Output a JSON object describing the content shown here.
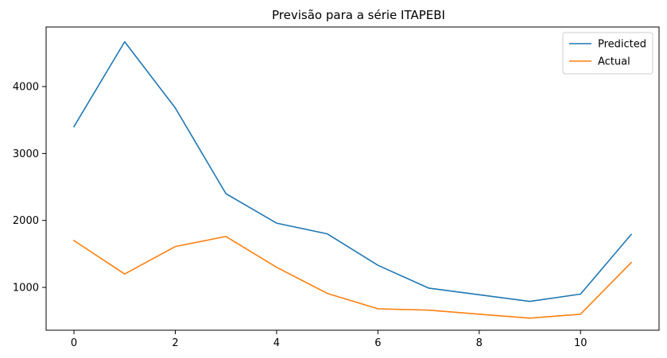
{
  "chart_data": {
    "type": "line",
    "title": "Previsão para a série ITAPEBI",
    "xlabel": "",
    "ylabel": "",
    "x": [
      0,
      1,
      2,
      3,
      4,
      5,
      6,
      7,
      8,
      9,
      10,
      11
    ],
    "xlim": [
      -0.55,
      11.55
    ],
    "ylim": [
      360,
      4890
    ],
    "xticks": [
      0,
      2,
      4,
      6,
      8,
      10
    ],
    "yticks": [
      1000,
      2000,
      3000,
      4000
    ],
    "grid": false,
    "legend_position": "top-right",
    "series": [
      {
        "name": "Predicted",
        "color": "#1f77b4",
        "values": [
          3400,
          4670,
          3680,
          2400,
          1960,
          1800,
          1330,
          990,
          890,
          790,
          900,
          1790
        ]
      },
      {
        "name": "Actual",
        "color": "#ff7f0e",
        "values": [
          1700,
          1200,
          1610,
          1760,
          1300,
          910,
          680,
          660,
          600,
          540,
          600,
          1370
        ]
      }
    ]
  }
}
